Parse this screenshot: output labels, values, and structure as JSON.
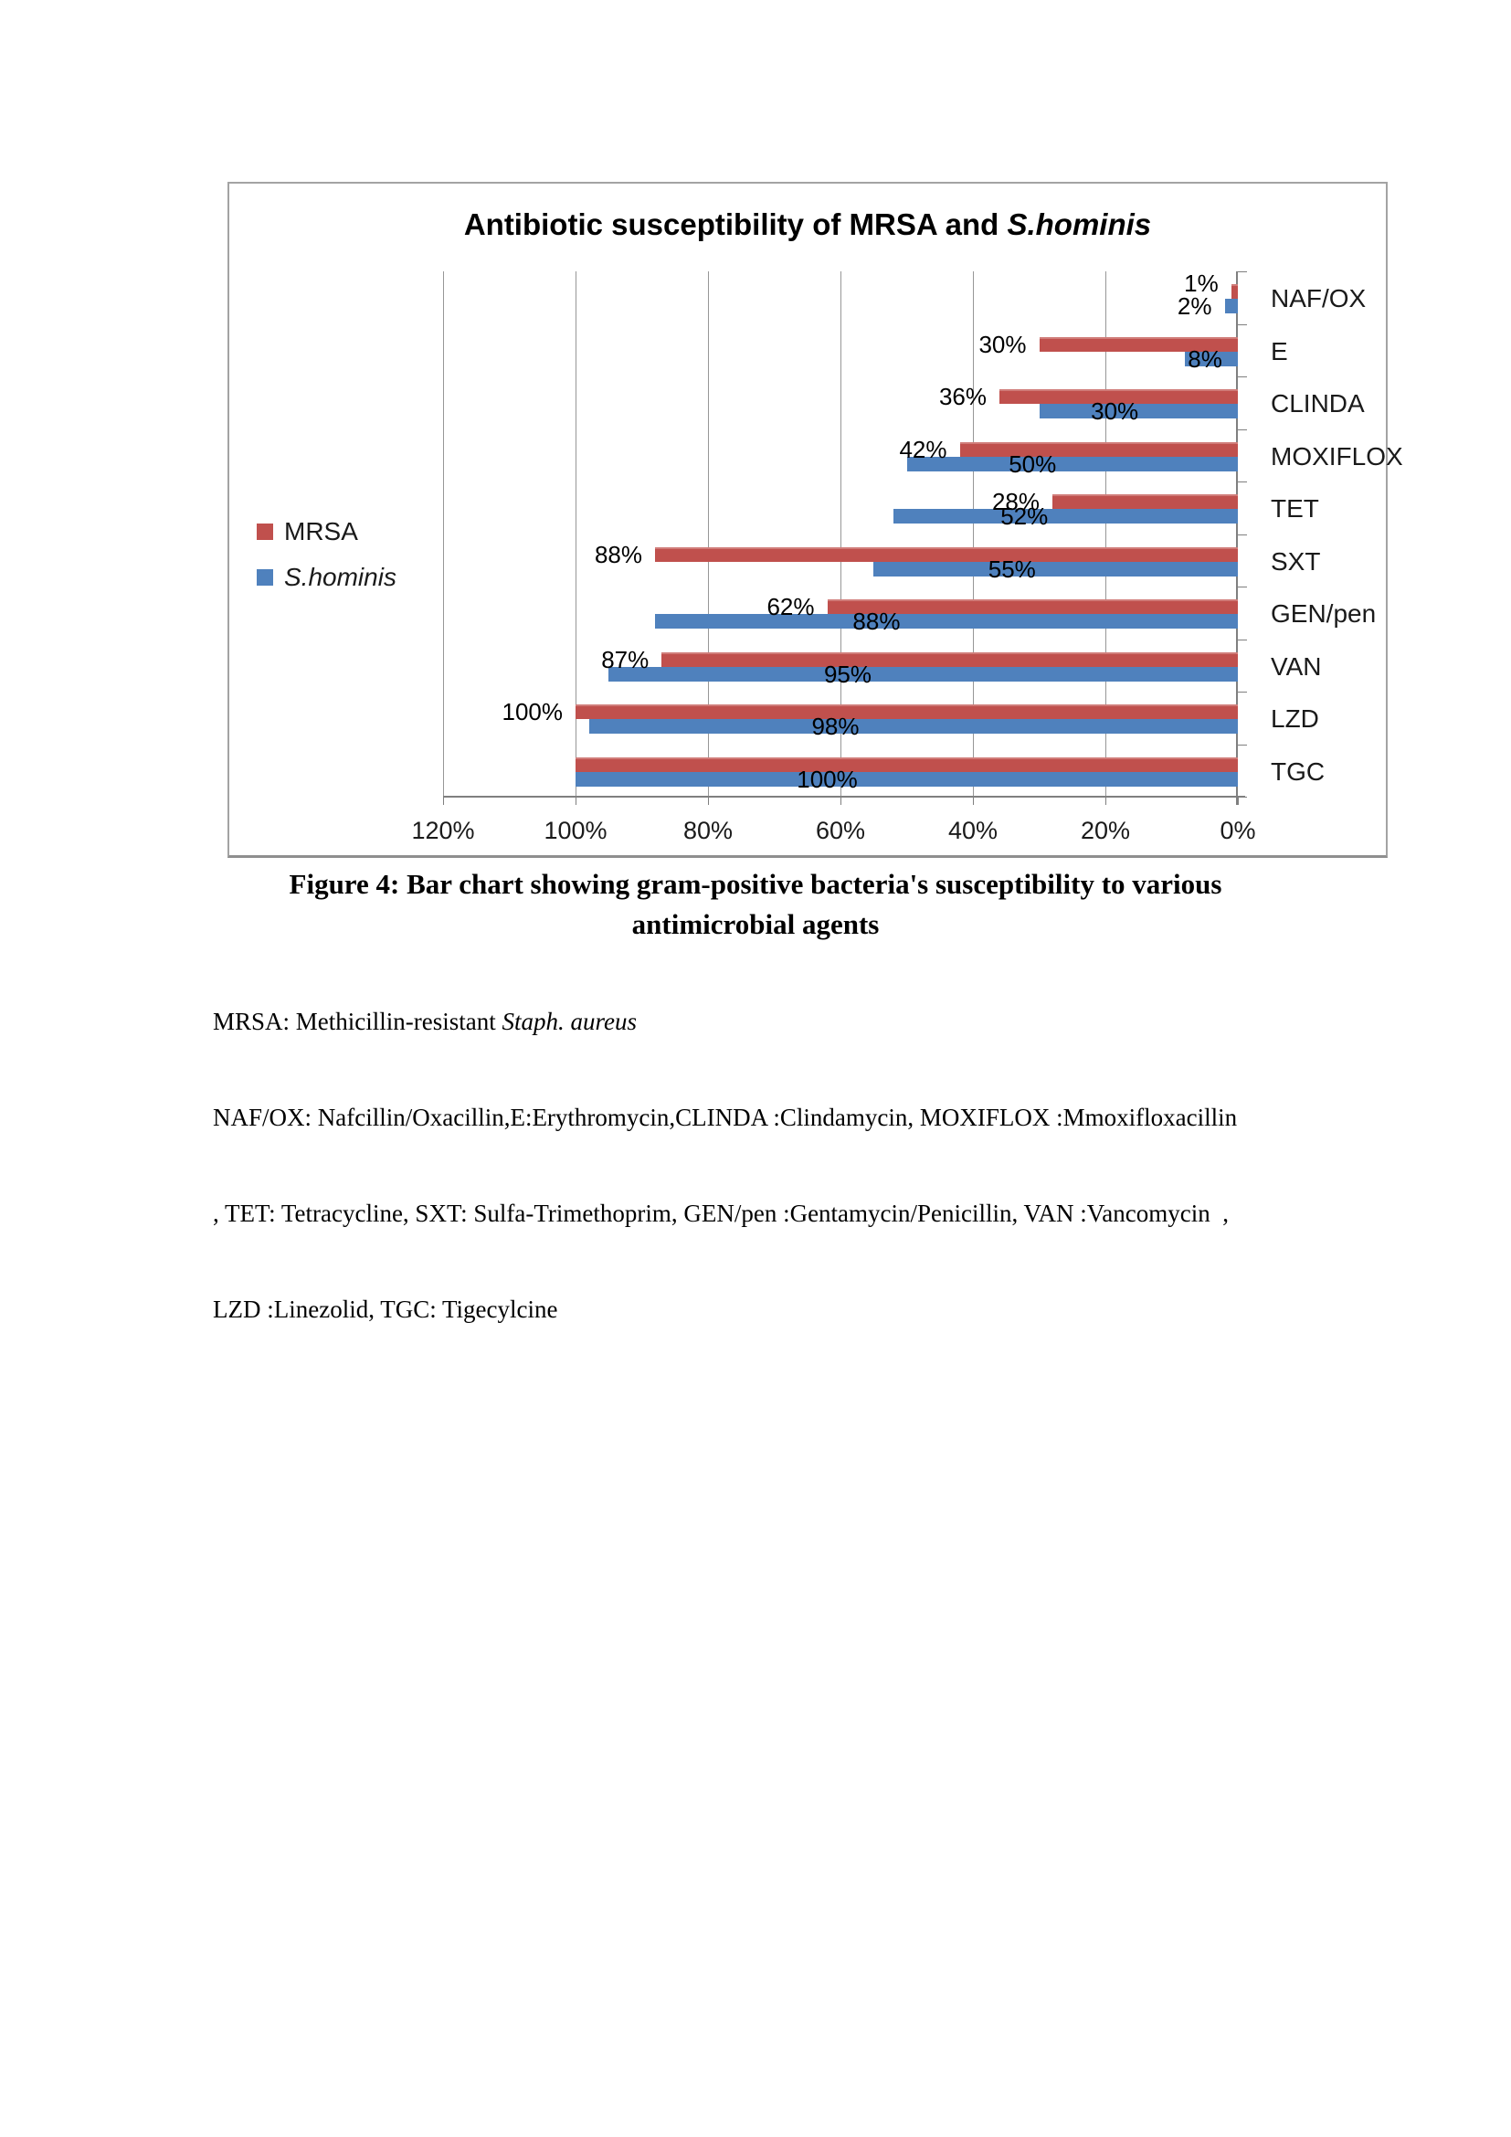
{
  "chart": {
    "title_regular": "Antibiotic susceptibility of MRSA and ",
    "title_italic": "S.hominis",
    "legend": [
      {
        "label": "MRSA",
        "color": "#C0504D",
        "italic": false
      },
      {
        "label": "S.hominis",
        "color": "#4F81BD",
        "italic": true
      }
    ],
    "colors": {
      "mrsa": "#C0504D",
      "s_hominis": "#4F81BD",
      "gridline": "#979797",
      "axis": "#7f7f7f",
      "frame_border": "#a3a3a3"
    }
  },
  "chart_data": {
    "type": "bar",
    "orientation": "horizontal",
    "value_axis_reversed": true,
    "title": "Antibiotic susceptibility of MRSA and S.hominis",
    "categories": [
      "NAF/OX",
      "E",
      "CLINDA",
      "MOXIFLOX",
      "TET",
      "SXT",
      "GEN/pen",
      "VAN",
      "LZD",
      "TGC"
    ],
    "series": [
      {
        "name": "MRSA",
        "color": "#C0504D",
        "values": [
          1,
          30,
          36,
          42,
          28,
          88,
          62,
          87,
          100,
          100
        ],
        "labels": [
          "1%",
          "30%",
          "36%",
          "42%",
          "28%",
          "88%",
          "62%",
          "87%",
          "100%",
          ""
        ]
      },
      {
        "name": "S.hominis",
        "color": "#4F81BD",
        "values": [
          2,
          8,
          30,
          50,
          52,
          55,
          88,
          95,
          98,
          100
        ],
        "labels": [
          "2%",
          "8%",
          "30%",
          "50%",
          "52%",
          "55%",
          "88%",
          "95%",
          "98%",
          "100%"
        ]
      }
    ],
    "x_tick_labels": [
      "120%",
      "100%",
      "80%",
      "60%",
      "40%",
      "20%",
      "0%"
    ],
    "x_tick_values": [
      120,
      100,
      80,
      60,
      40,
      20,
      0
    ],
    "xlim": [
      0,
      120
    ],
    "grid": true,
    "legend_position": "left"
  },
  "caption": {
    "line1": "Figure 4: Bar chart showing gram-positive bacteria's susceptibility to various",
    "line2": "antimicrobial agents"
  },
  "notes": {
    "line1_regular": "MRSA: Methicillin-resistant ",
    "line1_italic": "Staph. aureus",
    "line2": "NAF/OX: Nafcillin/Oxacillin,E:Erythromycin,CLINDA :Clindamycin, MOXIFLOX :Mmoxifloxacillin",
    "line3": ", TET: Tetracycline, SXT: Sulfa-Trimethoprim, GEN/pen :Gentamycin/Penicillin, VAN :Vancomycin  ,",
    "line4": "LZD :Linezolid, TGC: Tigecylcine"
  }
}
